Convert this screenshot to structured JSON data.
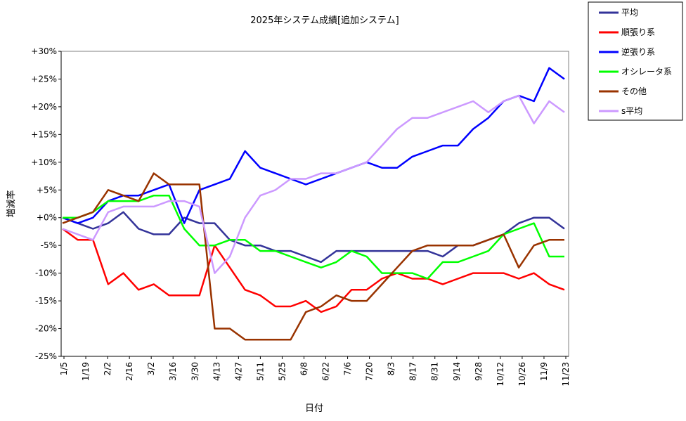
{
  "chart_data": {
    "type": "line",
    "title": "2025年システム成績[追加システム]",
    "xlabel": "日付",
    "ylabel": "増減率",
    "x_ticks": [
      "1/5",
      "1/19",
      "2/2",
      "2/16",
      "3/2",
      "3/16",
      "3/30",
      "4/13",
      "4/27",
      "5/11",
      "5/25",
      "6/8",
      "6/22",
      "7/6",
      "7/20",
      "8/3",
      "8/17",
      "8/31",
      "9/14",
      "9/28",
      "10/12",
      "10/26",
      "11/9",
      "11/23"
    ],
    "y_ticks": [
      "+30%",
      "+25%",
      "+20%",
      "+15%",
      "+10%",
      "+5%",
      "+0%",
      "-5%",
      "-10%",
      "-15%",
      "-20%",
      "-25%"
    ],
    "ylim": [
      -25,
      30
    ],
    "grid": false,
    "legend_position": "top-right",
    "series": [
      {
        "name": "平均",
        "color": "#333399",
        "values": [
          0,
          -1,
          -2,
          -1,
          1,
          -2,
          -3,
          -3,
          0,
          -1,
          -1,
          -4,
          -5,
          -5,
          -6,
          -6,
          -7,
          -8,
          -6,
          -6,
          -6,
          -6,
          -6,
          -6,
          -6,
          -7,
          -5,
          -5,
          -4,
          -3,
          -1,
          0,
          0,
          -2
        ]
      },
      {
        "name": "順張り系",
        "color": "#ff0000",
        "values": [
          -2,
          -4,
          -4,
          -12,
          -10,
          -13,
          -12,
          -14,
          -14,
          -14,
          -5,
          -9,
          -13,
          -14,
          -16,
          -16,
          -15,
          -17,
          -16,
          -13,
          -13,
          -11,
          -10,
          -11,
          -11,
          -12,
          -11,
          -10,
          -10,
          -10,
          -11,
          -10,
          -12,
          -13
        ]
      },
      {
        "name": "逆張り系",
        "color": "#0000ff",
        "values": [
          0,
          -1,
          0,
          3,
          4,
          4,
          5,
          6,
          -1,
          5,
          6,
          7,
          12,
          9,
          8,
          7,
          6,
          7,
          8,
          9,
          10,
          9,
          9,
          11,
          12,
          13,
          13,
          16,
          18,
          21,
          22,
          21,
          27,
          25
        ]
      },
      {
        "name": "オシレータ系",
        "color": "#00ff00",
        "values": [
          0,
          0,
          1,
          3,
          3,
          3,
          4,
          4,
          -2,
          -5,
          -5,
          -4,
          -4,
          -6,
          -6,
          -7,
          -8,
          -9,
          -8,
          -6,
          -7,
          -10,
          -10,
          -10,
          -11,
          -8,
          -8,
          -7,
          -6,
          -3,
          -2,
          -1,
          -7,
          -7
        ]
      },
      {
        "name": "その他",
        "color": "#993300",
        "values": [
          -1,
          0,
          1,
          5,
          4,
          3,
          8,
          6,
          6,
          6,
          -20,
          -20,
          -22,
          -22,
          -22,
          -22,
          -17,
          -16,
          -14,
          -15,
          -15,
          -12,
          -9,
          -6,
          -5,
          -5,
          -5,
          -5,
          -4,
          -3,
          -9,
          -5,
          -4,
          -4
        ]
      },
      {
        "name": "s平均",
        "color": "#cc99ff",
        "values": [
          -2,
          -3,
          -4,
          1,
          2,
          2,
          2,
          3,
          3,
          2,
          -10,
          -7,
          0,
          4,
          5,
          7,
          7,
          8,
          8,
          9,
          10,
          13,
          16,
          18,
          18,
          19,
          20,
          21,
          19,
          21,
          22,
          17,
          21,
          19
        ]
      }
    ]
  }
}
